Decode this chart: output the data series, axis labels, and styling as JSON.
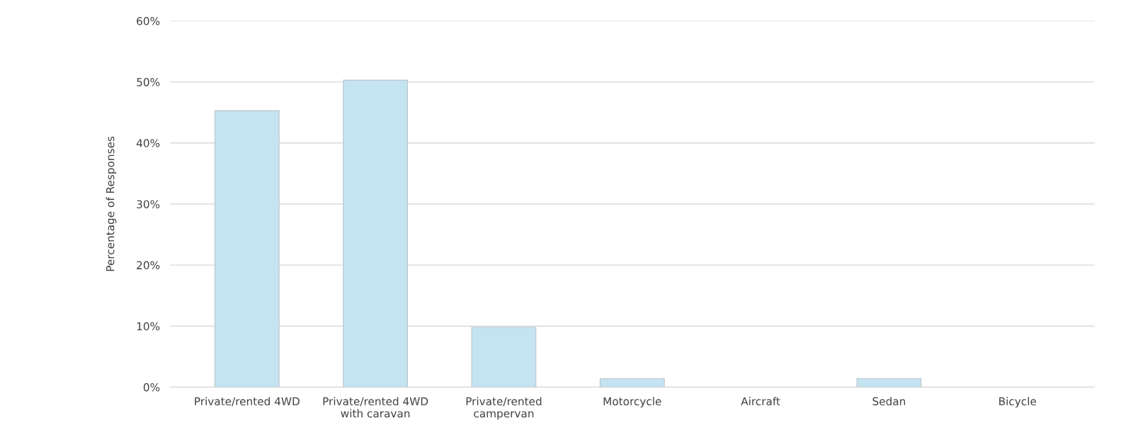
{
  "chart_data": {
    "type": "bar",
    "ylabel": "Percentage of Responses",
    "categories": [
      "Private/rented 4WD",
      "Private/rented 4WD\nwith caravan",
      "Private/rented\ncampervan",
      "Motorcycle",
      "Aircraft",
      "Sedan",
      "Bicycle"
    ],
    "values": [
      45.3,
      50.3,
      9.8,
      1.4,
      0,
      1.4,
      0
    ],
    "color": "#c5e4f2",
    "ylim": [
      0,
      60
    ],
    "yticks": [
      {
        "value": 0,
        "label": "0%"
      },
      {
        "value": 10,
        "label": "10%"
      },
      {
        "value": 20,
        "label": "20%"
      },
      {
        "value": 30,
        "label": "30%"
      },
      {
        "value": 40,
        "label": "40%"
      },
      {
        "value": 50,
        "label": "50%"
      },
      {
        "value": 60,
        "label": "60%"
      }
    ],
    "grid": "y",
    "legend": false
  }
}
